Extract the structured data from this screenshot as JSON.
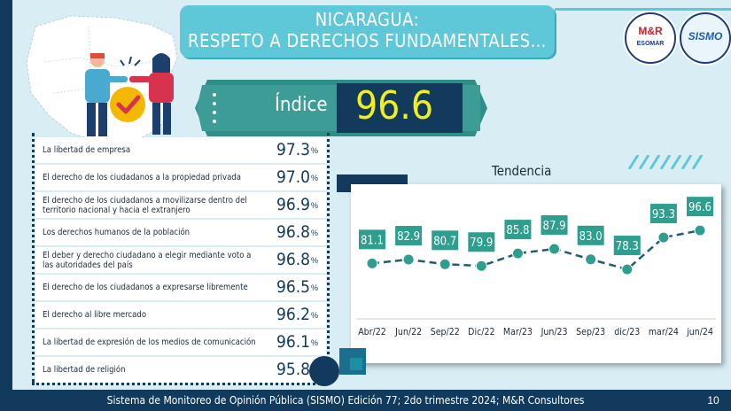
{
  "header": {
    "title_line1": "NICARAGUA:",
    "title_line2": "RESPETO A DERECHOS FUNDAMENTALES…",
    "logo_left": {
      "line1": "M&R",
      "line2": "ESOMAR"
    },
    "logo_right": {
      "line1": "SISMO"
    }
  },
  "index": {
    "label": "Índice",
    "value": "96.6"
  },
  "rights": [
    {
      "label": "La libertad de empresa",
      "value": "97.3",
      "unit": "%"
    },
    {
      "label": "El derecho de los ciudadanos a la propiedad privada",
      "value": "97.0",
      "unit": "%"
    },
    {
      "label": "El derecho de los ciudadanos a movilizarse dentro del territorio nacional y hacia el extranjero",
      "value": "96.9",
      "unit": "%"
    },
    {
      "label": "Los derechos humanos de la población",
      "value": "96.8",
      "unit": "%"
    },
    {
      "label": "El deber y derecho ciudadano a elegir mediante voto a las autoridades del país",
      "value": "96.8",
      "unit": "%"
    },
    {
      "label": "El derecho de los ciudadanos a expresarse libremente",
      "value": "96.5",
      "unit": "%"
    },
    {
      "label": "El derecho al libre mercado",
      "value": "96.2",
      "unit": "%"
    },
    {
      "label": "La libertad de expresión de los medios de comunicación",
      "value": "96.1",
      "unit": "%"
    },
    {
      "label": "La libertad de religión",
      "value": "95.8",
      "unit": "%"
    }
  ],
  "chart_data": {
    "type": "line",
    "title": "Tendencia",
    "categories": [
      "Abr/22",
      "Jun/22",
      "Sep/22",
      "Dic/22",
      "Mar/23",
      "Jun/23",
      "Sep/23",
      "dic/23",
      "mar/24",
      "jun/24"
    ],
    "values": [
      81.1,
      82.9,
      80.7,
      79.9,
      85.8,
      87.9,
      83.0,
      78.3,
      93.3,
      96.6
    ],
    "labels": [
      "81.1",
      "82.9",
      "80.7",
      "79.9",
      "85.8",
      "87.9",
      "83.0",
      "78.3",
      "93.3",
      "96.6"
    ],
    "xlabel": "",
    "ylabel": "",
    "ylim": [
      60,
      110
    ],
    "grid": false,
    "line_style": "dashed",
    "colors": {
      "line": "#1f5f70",
      "marker": "#2e9e8e",
      "label_box": "#2e9e8e"
    }
  },
  "footer": {
    "text": "Sistema de Monitoreo de Opinión Pública (SISMO) Edición 77; 2do trimestre 2024; M&R Consultores",
    "page": "10"
  },
  "colors": {
    "navy": "#123a5c",
    "teal": "#5ec7d8",
    "green": "#2e9e8e",
    "yellow": "#f0f01a"
  }
}
